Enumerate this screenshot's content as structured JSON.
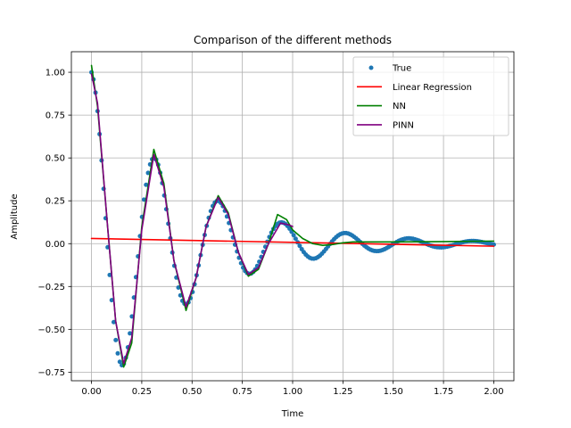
{
  "chart_data": {
    "type": "line",
    "title": "Comparison of the different methods",
    "xlabel": "Time",
    "ylabel": "Amplitude",
    "xlim": [
      -0.1,
      2.1
    ],
    "ylim": [
      -0.8,
      1.12
    ],
    "grid": true,
    "legend_position": "top-right",
    "xticks": [
      0.0,
      0.25,
      0.5,
      0.75,
      1.0,
      1.25,
      1.5,
      1.75,
      2.0
    ],
    "xtick_labels": [
      "0.00",
      "0.25",
      "0.50",
      "0.75",
      "1.00",
      "1.25",
      "1.50",
      "1.75",
      "2.00"
    ],
    "yticks": [
      -0.75,
      -0.5,
      -0.25,
      0.0,
      0.25,
      0.5,
      0.75,
      1.0
    ],
    "ytick_labels": [
      "−0.75",
      "−0.50",
      "−0.25",
      "0.00",
      "0.25",
      "0.50",
      "0.75",
      "1.00"
    ],
    "true_model": {
      "amplitude": 1.0,
      "decay": 2.2,
      "omega": 19.85,
      "t_start": 0,
      "t_end": 2,
      "points": 200
    },
    "series": [
      {
        "name": "True",
        "kind": "scatter",
        "color": "#1f77b4"
      },
      {
        "name": "Linear Regression",
        "kind": "line",
        "color": "#ff0000",
        "x": [
          0,
          2
        ],
        "y": [
          0.03,
          -0.015
        ]
      },
      {
        "name": "NN",
        "kind": "line",
        "color": "#008000",
        "x": [
          0,
          0.03,
          0.08,
          0.12,
          0.16,
          0.2,
          0.25,
          0.31,
          0.36,
          0.41,
          0.47,
          0.52,
          0.57,
          0.63,
          0.68,
          0.73,
          0.78,
          0.83,
          0.88,
          0.925,
          0.97,
          1.0,
          1.05,
          1.1,
          1.15,
          1.2,
          1.25,
          1.3,
          1.5,
          1.75,
          2.0
        ],
        "y": [
          1.04,
          0.8,
          0.1,
          -0.45,
          -0.72,
          -0.58,
          0.1,
          0.55,
          0.35,
          -0.1,
          -0.39,
          -0.2,
          0.1,
          0.28,
          0.18,
          -0.05,
          -0.19,
          -0.15,
          0.0,
          0.17,
          0.14,
          0.08,
          0.03,
          0.0,
          -0.01,
          -0.005,
          0.005,
          0.01,
          0.01,
          0.012,
          0.015
        ]
      },
      {
        "name": "PINN",
        "kind": "line",
        "color": "#800080",
        "x": [
          0,
          0.03,
          0.08,
          0.12,
          0.16,
          0.2,
          0.25,
          0.31,
          0.36,
          0.41,
          0.47,
          0.52,
          0.57,
          0.63,
          0.68,
          0.73,
          0.78,
          0.83,
          0.88,
          0.94,
          0.98,
          1.0
        ],
        "y": [
          0.99,
          0.82,
          0.1,
          -0.45,
          -0.7,
          -0.55,
          0.08,
          0.52,
          0.33,
          -0.1,
          -0.37,
          -0.2,
          0.1,
          0.27,
          0.17,
          -0.05,
          -0.18,
          -0.14,
          0.0,
          0.12,
          0.11,
          0.1
        ]
      }
    ]
  }
}
